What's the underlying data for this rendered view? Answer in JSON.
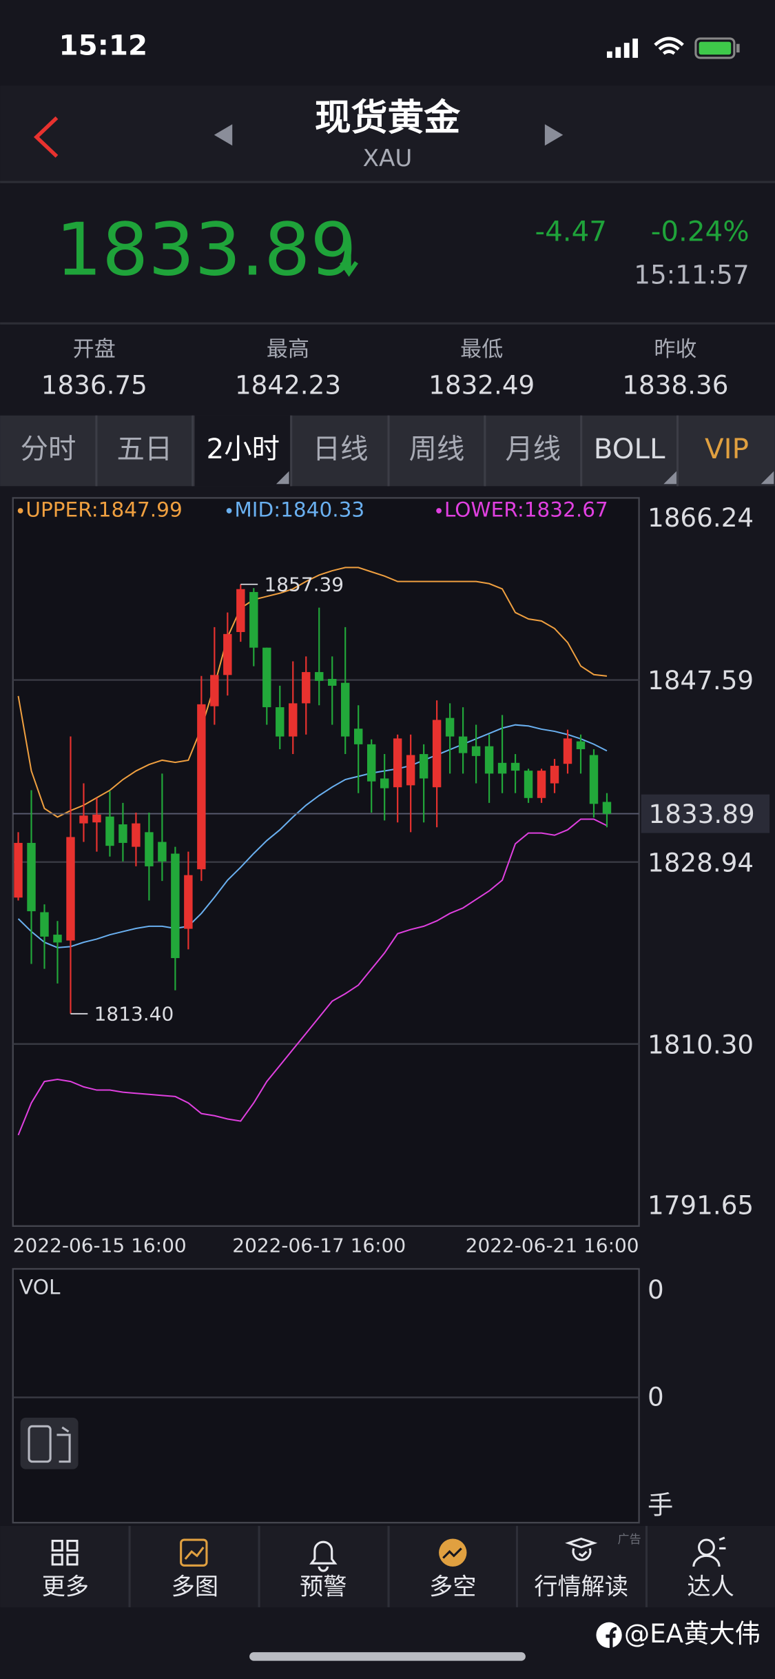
{
  "status_bar": {
    "time": "15:12"
  },
  "header": {
    "title": "现货黄金",
    "symbol": "XAU"
  },
  "quote": {
    "price": 1833.89,
    "change": -4.47,
    "change_pct": "-0.24%",
    "time": "15:11:57"
  },
  "stats": [
    {
      "label": "开盘",
      "value": 1836.75
    },
    {
      "label": "最高",
      "value": 1842.23
    },
    {
      "label": "最低",
      "value": 1832.49
    },
    {
      "label": "昨收",
      "value": 1838.36
    }
  ],
  "tabs": [
    "分时",
    "五日",
    "2小时",
    "日线",
    "周线",
    "月线",
    "BOLL",
    "VIP"
  ],
  "chart_data": {
    "type": "candlestick",
    "categories": [
      "2022-06-15 16:00",
      null,
      null,
      null,
      null,
      null,
      null,
      null,
      null,
      null,
      null,
      null,
      null,
      null,
      null,
      null,
      null,
      null,
      null,
      null,
      null,
      null,
      null,
      "2022-06-17 16:00",
      null,
      null,
      null,
      null,
      null,
      null,
      null,
      null,
      null,
      null,
      null,
      null,
      null,
      null,
      null,
      null,
      null,
      null,
      null,
      null,
      null,
      "2022-06-21 16:00"
    ],
    "open": [
      1825.3,
      1830.9,
      1823.8,
      1821.5,
      1820.9,
      1832.9,
      1833.0,
      1833.6,
      1832.8,
      1830.5,
      1832.0,
      1831.0,
      1829.8,
      1822.1,
      1828.2,
      1844.9,
      1848.1,
      1852.5,
      1856.6,
      1850.9,
      1844.8,
      1841.8,
      1845.2,
      1848.4,
      1847.7,
      1847.3,
      1842.6,
      1841.0,
      1837.5,
      1836.6,
      1836.8,
      1840.0,
      1836.6,
      1843.7,
      1841.8,
      1840.8,
      1840.8,
      1839.1,
      1839.1,
      1838.3,
      1835.5,
      1837.0,
      1839.0,
      1841.3,
      1839.9,
      1835.1
    ],
    "high": [
      1832.0,
      1836.3,
      1824.6,
      1822.9,
      1841.8,
      1837.0,
      1835.5,
      1836.2,
      1835.0,
      1834.0,
      1834.0,
      1838.0,
      1830.5,
      1830.0,
      1848.0,
      1853.0,
      1854.5,
      1857.39,
      1857.0,
      1850.9,
      1847.0,
      1849.5,
      1850.0,
      1855.0,
      1850.0,
      1853.0,
      1845.0,
      1841.5,
      1840.0,
      1842.0,
      1842.0,
      1841.0,
      1845.5,
      1845.2,
      1844.8,
      1843.0,
      1842.0,
      1844.0,
      1840.0,
      1838.5,
      1838.5,
      1839.5,
      1842.5,
      1842.0,
      1840.5,
      1836.0
    ],
    "low": [
      1825.0,
      1818.5,
      1818.0,
      1816.5,
      1813.4,
      1831.0,
      1830.0,
      1829.5,
      1829.0,
      1828.5,
      1825.0,
      1827.0,
      1815.8,
      1820.0,
      1827.0,
      1843.0,
      1846.0,
      1851.5,
      1849.0,
      1843.0,
      1840.5,
      1840.0,
      1842.0,
      1845.0,
      1843.0,
      1840.0,
      1836.0,
      1834.0,
      1833.2,
      1833.0,
      1832.0,
      1833.0,
      1832.5,
      1838.0,
      1838.0,
      1837.0,
      1835.0,
      1836.0,
      1836.0,
      1835.0,
      1835.0,
      1836.0,
      1838.0,
      1838.0,
      1833.5,
      1832.5
    ],
    "close": [
      1830.9,
      1823.9,
      1821.3,
      1820.7,
      1831.5,
      1833.7,
      1833.8,
      1830.6,
      1830.9,
      1832.9,
      1828.5,
      1829.0,
      1819.1,
      1827.6,
      1845.1,
      1848.1,
      1852.3,
      1856.9,
      1850.9,
      1844.8,
      1841.8,
      1845.2,
      1848.4,
      1847.5,
      1847.0,
      1841.8,
      1841.0,
      1837.2,
      1836.5,
      1841.6,
      1839.9,
      1837.5,
      1843.5,
      1841.8,
      1840.1,
      1839.8,
      1838.0,
      1838.0,
      1838.3,
      1835.5,
      1838.3,
      1838.8,
      1841.6,
      1840.5,
      1834.9,
      1833.89
    ],
    "up_color": "#e8322f",
    "down_color": "#22a83a",
    "series": [
      {
        "name": "UPPER:1847.99",
        "color": "#f0a040",
        "values": [
          1845.95,
          1838.27,
          1834.43,
          1833.55,
          1834.21,
          1834.76,
          1835.53,
          1836.29,
          1837.39,
          1838.27,
          1838.93,
          1839.37,
          1839.15,
          1839.37,
          1842.66,
          1847.04,
          1851.98,
          1854.94,
          1855.82,
          1856.15,
          1856.48,
          1856.92,
          1857.68,
          1858.34,
          1858.78,
          1859.11,
          1859.11,
          1858.67,
          1858.23,
          1857.68,
          1857.68,
          1857.68,
          1857.68,
          1857.68,
          1857.68,
          1857.68,
          1857.46,
          1856.92,
          1854.5,
          1853.84,
          1853.63,
          1852.86,
          1851.43,
          1849.02,
          1848.14,
          1847.99
        ]
      },
      {
        "name": "MID:1840.33",
        "color": "#6ab0f0",
        "values": [
          1823.13,
          1821.82,
          1820.72,
          1820.17,
          1820.28,
          1820.72,
          1821.05,
          1821.49,
          1821.82,
          1822.14,
          1822.36,
          1822.36,
          1822.14,
          1822.36,
          1823.68,
          1825.33,
          1827.08,
          1828.4,
          1829.82,
          1831.14,
          1832.24,
          1833.55,
          1834.76,
          1835.75,
          1836.62,
          1837.39,
          1837.72,
          1838.05,
          1838.27,
          1838.49,
          1838.82,
          1839.37,
          1839.91,
          1840.46,
          1841.01,
          1841.56,
          1842.11,
          1842.66,
          1842.99,
          1842.88,
          1842.55,
          1842.33,
          1842.0,
          1841.56,
          1841.01,
          1840.33
        ]
      },
      {
        "name": "LOWER:1832.67",
        "color": "#e040e0",
        "values": [
          1800.97,
          1804.26,
          1806.46,
          1806.68,
          1806.46,
          1805.91,
          1805.58,
          1805.58,
          1805.36,
          1805.25,
          1805.14,
          1805.03,
          1804.92,
          1804.26,
          1803.17,
          1802.95,
          1802.62,
          1802.4,
          1804.26,
          1806.46,
          1808.1,
          1809.75,
          1811.39,
          1813.04,
          1814.69,
          1815.45,
          1816.33,
          1817.98,
          1819.62,
          1821.6,
          1822.03,
          1822.36,
          1822.91,
          1823.68,
          1824.23,
          1825.11,
          1825.98,
          1827.08,
          1830.81,
          1831.91,
          1831.91,
          1831.69,
          1832.24,
          1833.33,
          1833.33,
          1832.67
        ]
      }
    ],
    "ylim": [
      1791.65,
      1866.24
    ],
    "yticks": [
      1866.24,
      1847.59,
      1828.94,
      {
        "value": 1810.3,
        "label": "1810.30"
      },
      1791.65
    ],
    "grid": true,
    "last_price": 1833.89,
    "annotations": [
      1857.39,
      {
        "value": 1813.4,
        "label": "1813.40"
      }
    ]
  },
  "volume": {
    "label": "VOL",
    "yticks": [
      0,
      0
    ],
    "unit": "手"
  },
  "nav": [
    "更多",
    "多图",
    "预警",
    "多空",
    "行情解读",
    "达人"
  ],
  "ad": "广告",
  "watermark": "@EA黄大伟"
}
